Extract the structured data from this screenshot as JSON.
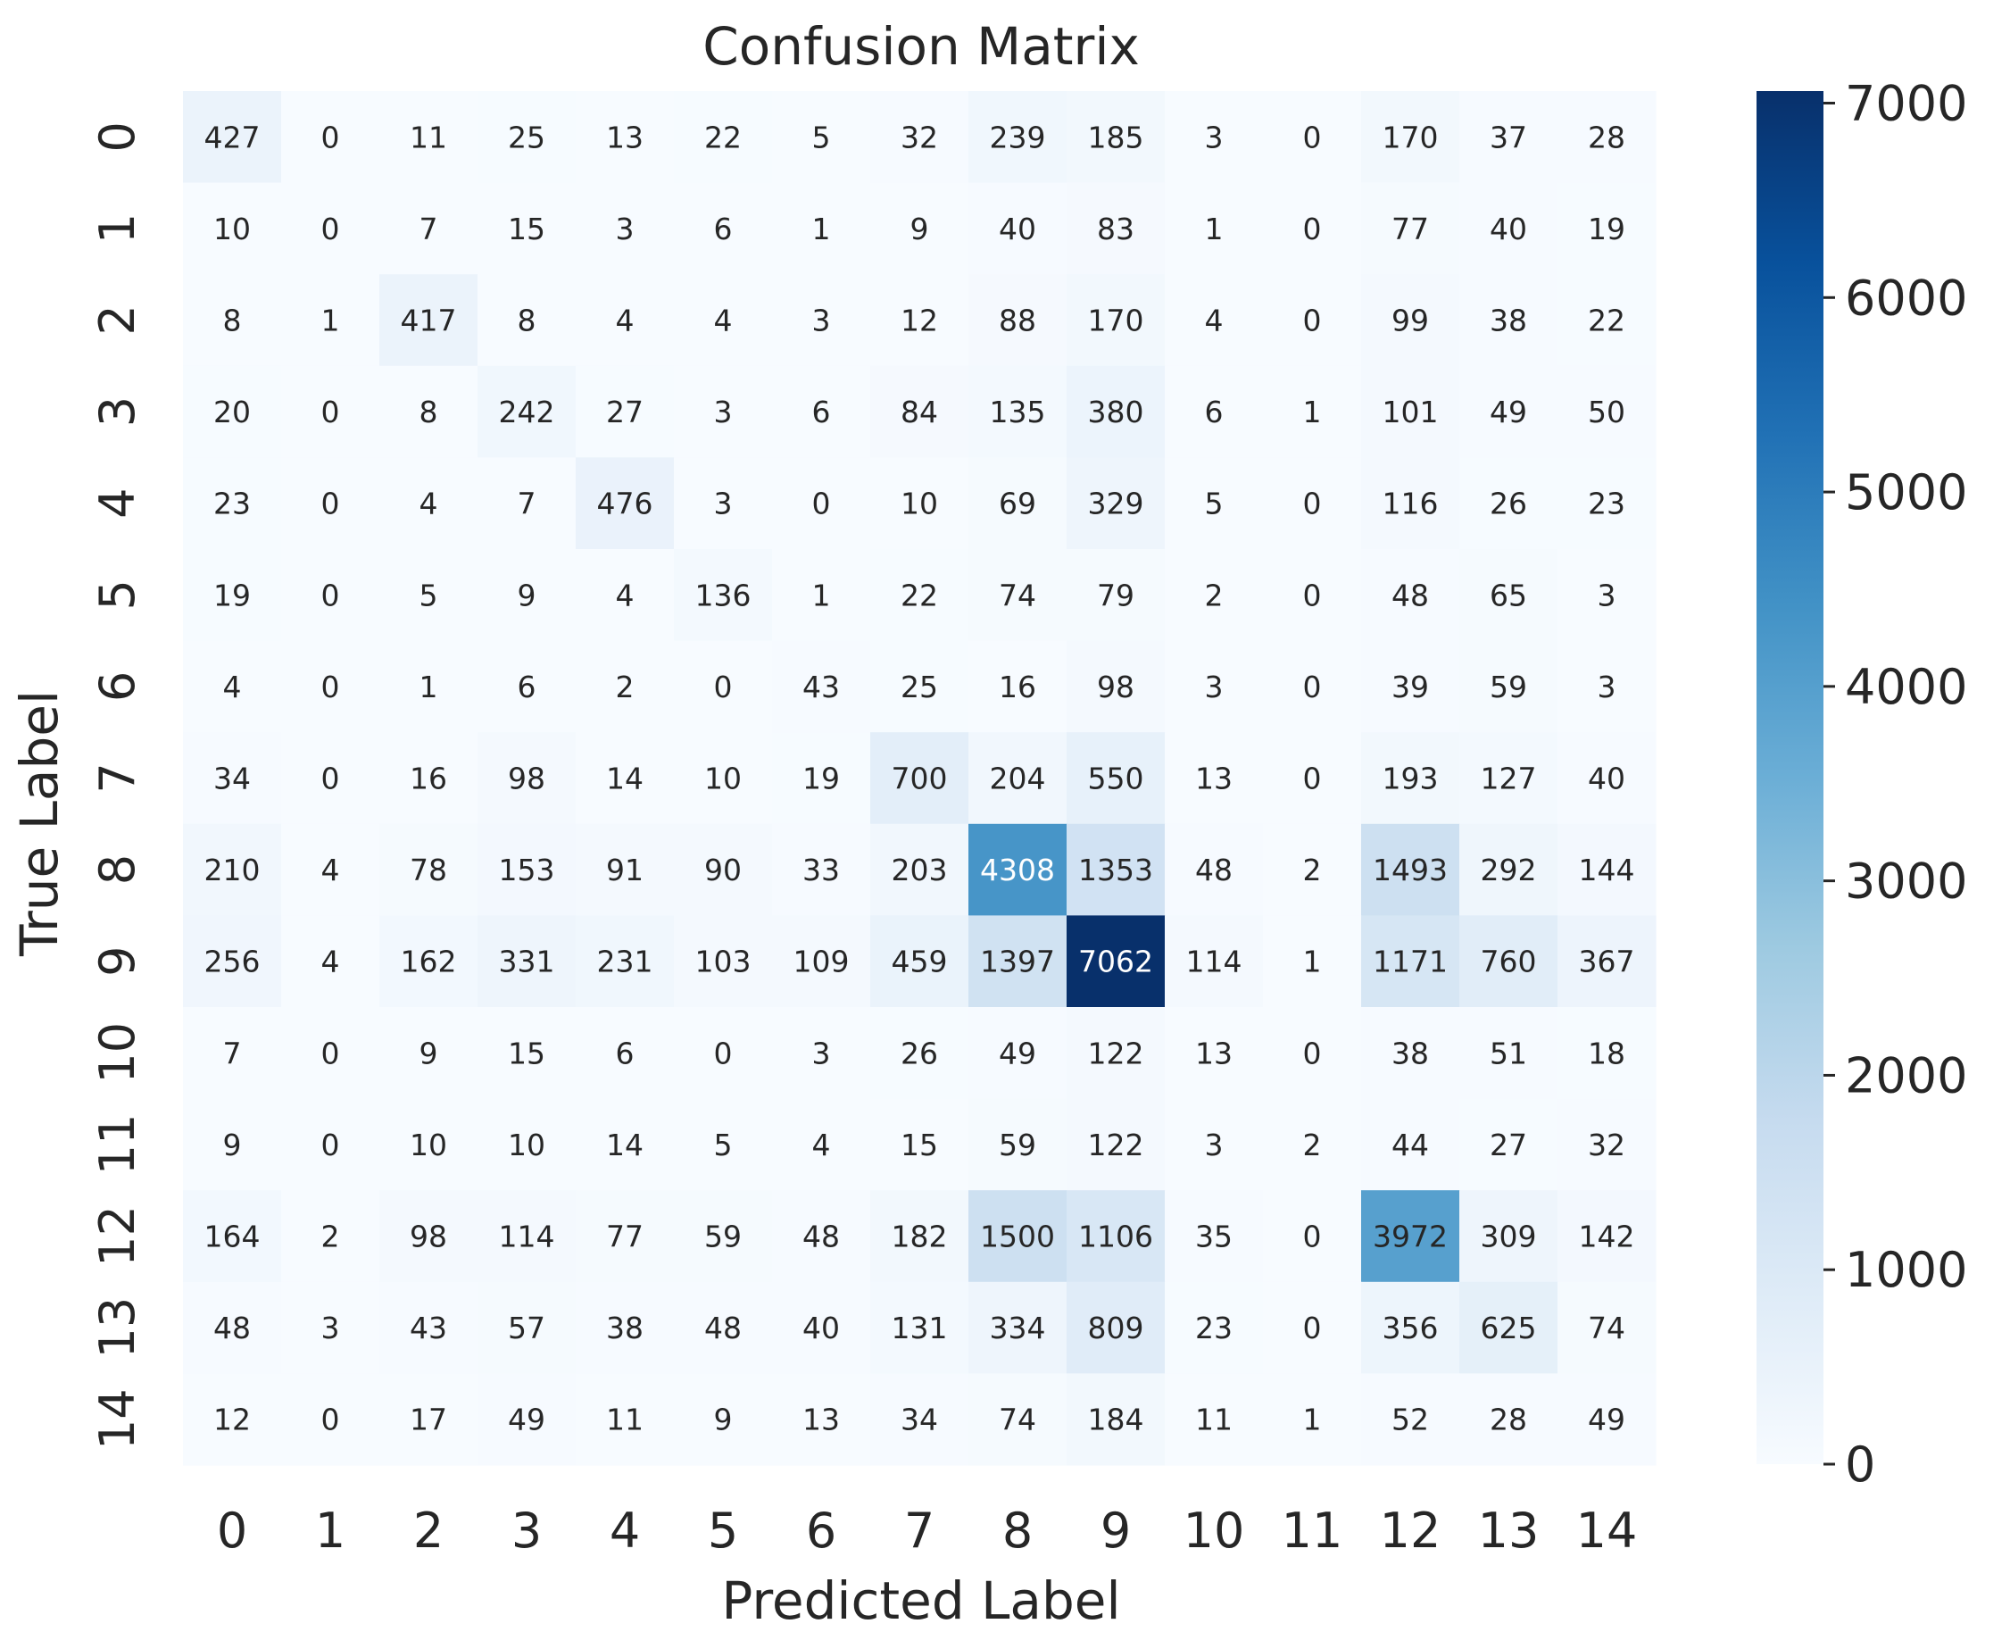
{
  "chart_data": {
    "type": "heatmap",
    "title": "Confusion Matrix",
    "xlabel": "Predicted Label",
    "ylabel": "True Label",
    "x_categories": [
      "0",
      "1",
      "2",
      "3",
      "4",
      "5",
      "6",
      "7",
      "8",
      "9",
      "10",
      "11",
      "12",
      "13",
      "14"
    ],
    "y_categories": [
      "0",
      "1",
      "2",
      "3",
      "4",
      "5",
      "6",
      "7",
      "8",
      "9",
      "10",
      "11",
      "12",
      "13",
      "14"
    ],
    "values": [
      [
        427,
        0,
        11,
        25,
        13,
        22,
        5,
        32,
        239,
        185,
        3,
        0,
        170,
        37,
        28
      ],
      [
        10,
        0,
        7,
        15,
        3,
        6,
        1,
        9,
        40,
        83,
        1,
        0,
        77,
        40,
        19
      ],
      [
        8,
        1,
        417,
        8,
        4,
        4,
        3,
        12,
        88,
        170,
        4,
        0,
        99,
        38,
        22
      ],
      [
        20,
        0,
        8,
        242,
        27,
        3,
        6,
        84,
        135,
        380,
        6,
        1,
        101,
        49,
        50
      ],
      [
        23,
        0,
        4,
        7,
        476,
        3,
        0,
        10,
        69,
        329,
        5,
        0,
        116,
        26,
        23
      ],
      [
        19,
        0,
        5,
        9,
        4,
        136,
        1,
        22,
        74,
        79,
        2,
        0,
        48,
        65,
        3
      ],
      [
        4,
        0,
        1,
        6,
        2,
        0,
        43,
        25,
        16,
        98,
        3,
        0,
        39,
        59,
        3
      ],
      [
        34,
        0,
        16,
        98,
        14,
        10,
        19,
        700,
        204,
        550,
        13,
        0,
        193,
        127,
        40
      ],
      [
        210,
        4,
        78,
        153,
        91,
        90,
        33,
        203,
        4308,
        1353,
        48,
        2,
        1493,
        292,
        144
      ],
      [
        256,
        4,
        162,
        331,
        231,
        103,
        109,
        459,
        1397,
        7062,
        114,
        1,
        1171,
        760,
        367
      ],
      [
        7,
        0,
        9,
        15,
        6,
        0,
        3,
        26,
        49,
        122,
        13,
        0,
        38,
        51,
        18
      ],
      [
        9,
        0,
        10,
        10,
        14,
        5,
        4,
        15,
        59,
        122,
        3,
        2,
        44,
        27,
        32
      ],
      [
        164,
        2,
        98,
        114,
        77,
        59,
        48,
        182,
        1500,
        1106,
        35,
        0,
        3972,
        309,
        142
      ],
      [
        48,
        3,
        43,
        57,
        38,
        48,
        40,
        131,
        334,
        809,
        23,
        0,
        356,
        625,
        74
      ],
      [
        12,
        0,
        17,
        49,
        11,
        9,
        13,
        34,
        74,
        184,
        11,
        1,
        52,
        28,
        49
      ]
    ],
    "colormap": "Blues",
    "vmin": 0,
    "vmax": 7062,
    "colorbar_ticks": [
      0,
      1000,
      2000,
      3000,
      4000,
      5000,
      6000,
      7000
    ],
    "colorbar_tick_labels": [
      "0",
      "1000",
      "2000",
      "3000",
      "4000",
      "5000",
      "6000",
      "7000"
    ],
    "grid": false
  }
}
